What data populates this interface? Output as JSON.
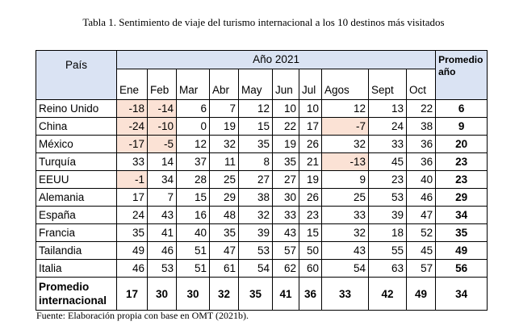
{
  "caption": "Tabla 1. Sentimiento de viaje del turismo internacional a los 10 destinos más visitados",
  "source": "Fuente: Elaboración propia con base en OMT (2021b).",
  "header": {
    "country": "País",
    "year": "Año 2021",
    "months": [
      "Ene",
      "Feb",
      "Mar",
      "Abr",
      "May",
      "Jun",
      "Jul",
      "Agos",
      "Sept",
      "Oct"
    ],
    "average": "Promedio año"
  },
  "colors": {
    "header_bg": "#dae3f3",
    "negative_bg": "#fbe2d5"
  },
  "rows": [
    {
      "country": "Reino Unido",
      "values": [
        "-18",
        "-14",
        "6",
        "7",
        "12",
        "10",
        "10",
        "12",
        "13",
        "22"
      ],
      "avg": "6"
    },
    {
      "country": "China",
      "values": [
        "-24",
        "-10",
        "0",
        "19",
        "15",
        "22",
        "17",
        "-7",
        "24",
        "38"
      ],
      "avg": "9"
    },
    {
      "country": "México",
      "values": [
        "-17",
        "-5",
        "12",
        "32",
        "35",
        "19",
        "26",
        "32",
        "33",
        "36"
      ],
      "avg": "20"
    },
    {
      "country": "Turquía",
      "values": [
        "33",
        "14",
        "37",
        "11",
        "8",
        "35",
        "21",
        "-13",
        "45",
        "36"
      ],
      "avg": "23"
    },
    {
      "country": "EEUU",
      "values": [
        "-1",
        "34",
        "28",
        "25",
        "27",
        "27",
        "19",
        "9",
        "23",
        "40"
      ],
      "avg": "23"
    },
    {
      "country": "Alemania",
      "values": [
        "17",
        "7",
        "15",
        "29",
        "38",
        "30",
        "26",
        "25",
        "53",
        "46"
      ],
      "avg": "29"
    },
    {
      "country": "España",
      "values": [
        "24",
        "43",
        "16",
        "48",
        "32",
        "33",
        "23",
        "33",
        "39",
        "47"
      ],
      "avg": "34"
    },
    {
      "country": "Francia",
      "values": [
        "35",
        "41",
        "40",
        "35",
        "39",
        "43",
        "15",
        "32",
        "18",
        "52"
      ],
      "avg": "35"
    },
    {
      "country": "Tailandia",
      "values": [
        "49",
        "46",
        "51",
        "47",
        "53",
        "57",
        "50",
        "43",
        "55",
        "45"
      ],
      "avg": "49"
    },
    {
      "country": "Italia",
      "values": [
        "46",
        "53",
        "51",
        "61",
        "54",
        "62",
        "60",
        "54",
        "63",
        "57"
      ],
      "avg": "56"
    }
  ],
  "total": {
    "label": "Promedio internacional",
    "values": [
      "17",
      "30",
      "30",
      "32",
      "35",
      "41",
      "36",
      "33",
      "42",
      "49"
    ],
    "avg": "34"
  }
}
